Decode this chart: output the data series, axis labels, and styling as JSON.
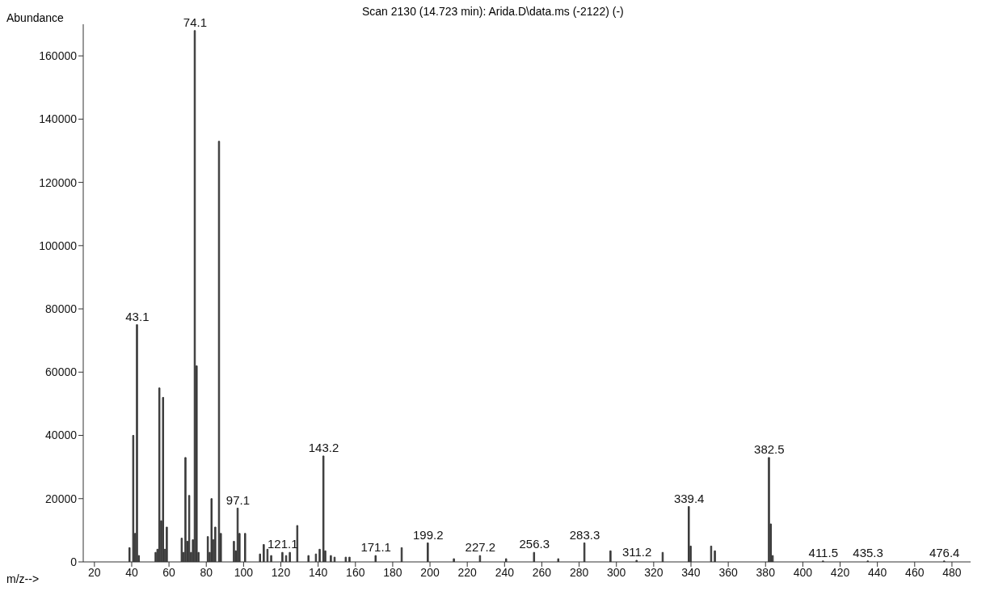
{
  "chart_data": {
    "type": "bar",
    "title": "Scan 2130 (14.723 min): Arida.D\\data.ms (-2122) (-)",
    "xlabel": "m/z-->",
    "ylabel": "Abundance",
    "x": [
      39,
      41,
      42,
      43,
      44,
      53,
      54,
      55,
      56,
      57,
      58,
      59,
      67,
      68,
      69,
      70,
      71,
      72,
      73,
      74,
      75,
      76,
      81,
      82,
      83,
      84,
      85,
      87,
      88,
      95,
      96,
      97,
      98,
      101,
      109,
      111,
      113,
      115,
      121,
      123,
      125,
      129,
      135,
      139,
      141,
      143,
      144,
      147,
      149,
      155,
      157,
      171,
      185,
      199,
      213,
      227,
      241,
      256,
      269,
      283,
      297,
      311,
      325,
      339,
      340,
      351,
      353,
      382,
      383,
      384,
      411,
      435,
      476
    ],
    "values": [
      4500,
      40000,
      9000,
      75000,
      2000,
      3000,
      4000,
      55000,
      13000,
      52000,
      4000,
      11000,
      7500,
      3000,
      33000,
      6500,
      21000,
      3000,
      7000,
      168000,
      62000,
      3000,
      8000,
      3000,
      20000,
      7000,
      11000,
      133000,
      9000,
      6500,
      3500,
      17000,
      9000,
      9000,
      2500,
      5500,
      4000,
      2000,
      3000,
      2000,
      3000,
      11500,
      2000,
      2500,
      4000,
      33500,
      3500,
      2000,
      1500,
      1500,
      1500,
      2000,
      4500,
      6000,
      1000,
      2000,
      1000,
      3000,
      1000,
      6000,
      3500,
      500,
      3000,
      17500,
      5000,
      5000,
      3500,
      33000,
      12000,
      2000,
      300,
      300,
      300
    ],
    "color": "#3a3a3a",
    "xlim": [
      14,
      490
    ],
    "ylim": [
      0,
      170000
    ],
    "xticks": [
      20,
      40,
      60,
      80,
      100,
      120,
      140,
      160,
      180,
      200,
      220,
      240,
      260,
      280,
      300,
      320,
      340,
      360,
      380,
      400,
      420,
      440,
      460,
      480
    ],
    "yticks": [
      0,
      20000,
      40000,
      60000,
      80000,
      100000,
      120000,
      140000,
      160000
    ],
    "annotations": [
      {
        "text": "43.1",
        "x": 43,
        "y": 75000
      },
      {
        "text": "74.1",
        "x": 74,
        "y": 168000
      },
      {
        "text": "97.1",
        "x": 97,
        "y": 17000
      },
      {
        "text": "121.1",
        "x": 121,
        "y": 3000
      },
      {
        "text": "143.2",
        "x": 143,
        "y": 33500
      },
      {
        "text": "171.1",
        "x": 171,
        "y": 2000
      },
      {
        "text": "199.2",
        "x": 199,
        "y": 6000
      },
      {
        "text": "227.2",
        "x": 227,
        "y": 2000
      },
      {
        "text": "256.3",
        "x": 256,
        "y": 3000
      },
      {
        "text": "283.3",
        "x": 283,
        "y": 6000
      },
      {
        "text": "311.2",
        "x": 311,
        "y": 500
      },
      {
        "text": "339.4",
        "x": 339,
        "y": 17500
      },
      {
        "text": "382.5",
        "x": 382,
        "y": 33000
      },
      {
        "text": "411.5",
        "x": 411,
        "y": 300
      },
      {
        "text": "435.3",
        "x": 435,
        "y": 300
      },
      {
        "text": "476.4",
        "x": 476,
        "y": 300
      }
    ],
    "grid": false,
    "legend": false
  }
}
